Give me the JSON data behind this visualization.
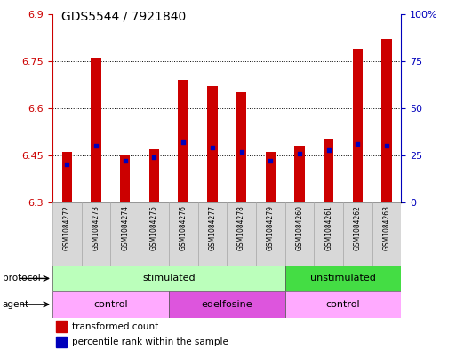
{
  "title": "GDS5544 / 7921840",
  "samples": [
    "GSM1084272",
    "GSM1084273",
    "GSM1084274",
    "GSM1084275",
    "GSM1084276",
    "GSM1084277",
    "GSM1084278",
    "GSM1084279",
    "GSM1084260",
    "GSM1084261",
    "GSM1084262",
    "GSM1084263"
  ],
  "transformed_count": [
    6.46,
    6.76,
    6.45,
    6.47,
    6.69,
    6.67,
    6.65,
    6.46,
    6.48,
    6.5,
    6.79,
    6.82
  ],
  "percentile_rank": [
    20,
    30,
    22,
    24,
    32,
    29,
    27,
    22,
    26,
    28,
    31,
    30
  ],
  "ymin": 6.3,
  "ymax": 6.9,
  "yright_min": 0,
  "yright_max": 100,
  "yticks_left": [
    6.3,
    6.45,
    6.6,
    6.75,
    6.9
  ],
  "ytick_labels_left": [
    "6.3",
    "6.45",
    "6.6",
    "6.75",
    "6.9"
  ],
  "yticks_right": [
    0,
    25,
    50,
    75,
    100
  ],
  "ytick_labels_right": [
    "0",
    "25",
    "50",
    "75",
    "100%"
  ],
  "bar_color": "#cc0000",
  "blue_color": "#0000bb",
  "protocol_labels": [
    "stimulated",
    "unstimulated"
  ],
  "protocol_ranges": [
    [
      0,
      8
    ],
    [
      8,
      12
    ]
  ],
  "protocol_colors": [
    "#bbffbb",
    "#44dd44"
  ],
  "agent_labels": [
    "control",
    "edelfosine",
    "control"
  ],
  "agent_ranges": [
    [
      0,
      4
    ],
    [
      4,
      8
    ],
    [
      8,
      12
    ]
  ],
  "agent_colors": [
    "#ffaaff",
    "#dd55dd",
    "#ffaaff"
  ],
  "title_fontsize": 10,
  "left_color": "#cc0000",
  "right_color": "#0000bb",
  "bar_width": 0.35,
  "xlim_left": -0.5,
  "xlim_right": 11.5
}
